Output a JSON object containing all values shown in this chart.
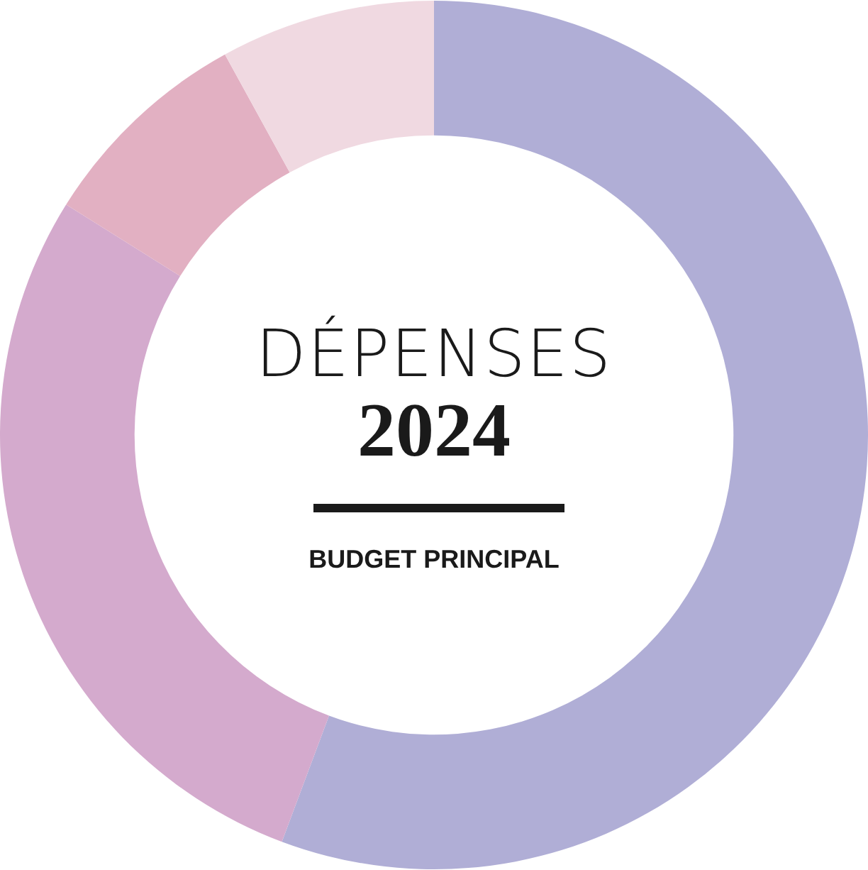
{
  "chart_data": {
    "type": "donut",
    "title": "DÉPENSES",
    "subtitle": "2024",
    "annotations": [
      "BUDGET PRINCIPAL"
    ],
    "categories": [
      null,
      null,
      null,
      null
    ],
    "values": [
      55.7,
      28.2,
      8.1,
      8.0
    ],
    "colors": [
      "#b0aed6",
      "#d4aacd",
      "#e2b0c2",
      "#f0d9e1"
    ],
    "legend": false
  }
}
